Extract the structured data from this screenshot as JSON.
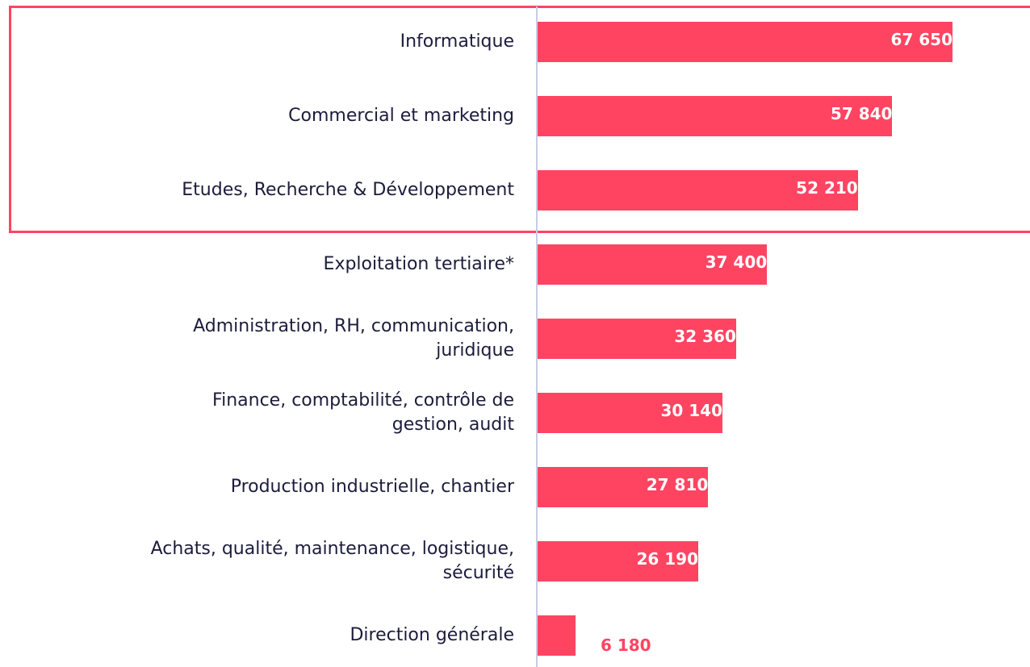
{
  "chart_data": {
    "type": "bar",
    "orientation": "horizontal",
    "color": "#ff4462",
    "categories": [
      "Informatique",
      "Commercial et marketing",
      "Etudes, Recherche & Développement",
      "Exploitation tertiaire*",
      "Administration, RH, communication,\njuridique",
      "Finance, comptabilité, contrôle de\ngestion, audit",
      "Production industrielle, chantier",
      "Achats, qualité, maintenance, logistique,\nsécurité",
      "Direction générale"
    ],
    "values": [
      67650,
      57840,
      52210,
      37400,
      32360,
      30140,
      27810,
      26190,
      6180
    ],
    "value_labels": [
      "67 650",
      "57 840",
      "52 210",
      "37 400",
      "32 360",
      "30 140",
      "27 810",
      "26 190",
      "6 180"
    ]
  }
}
